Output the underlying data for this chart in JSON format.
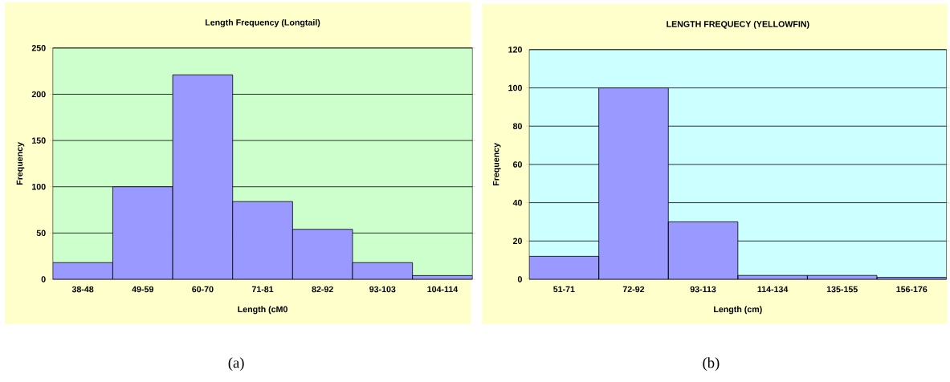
{
  "chart_data": [
    {
      "type": "bar",
      "title": "Length Frequency (Longtail)",
      "xlabel": "Length (cM0",
      "ylabel": "Frequency",
      "categories": [
        "38-48",
        "49-59",
        "60-70",
        "71-81",
        "82-92",
        "93-103",
        "104-114"
      ],
      "values": [
        18,
        100,
        221,
        84,
        54,
        18,
        4
      ],
      "color": "#9999ff",
      "ylim": [
        0,
        250
      ],
      "yticks": [
        0,
        50,
        100,
        150,
        200,
        250
      ],
      "grid": "y",
      "annotations": [
        "(a)"
      ]
    },
    {
      "type": "bar",
      "title": "LENGTH FREQUECY (YELLOWFIN)",
      "xlabel": "Length (cm)",
      "ylabel": "Frequency",
      "categories": [
        "51-71",
        "72-92",
        "93-113",
        "114-134",
        "135-155",
        "156-176"
      ],
      "values": [
        12,
        100,
        30,
        2,
        2,
        1
      ],
      "color": "#9999ff",
      "ylim": [
        0,
        120
      ],
      "yticks": [
        0,
        20,
        40,
        60,
        80,
        100,
        120
      ],
      "grid": "y",
      "annotations": [
        "(b)"
      ]
    }
  ]
}
